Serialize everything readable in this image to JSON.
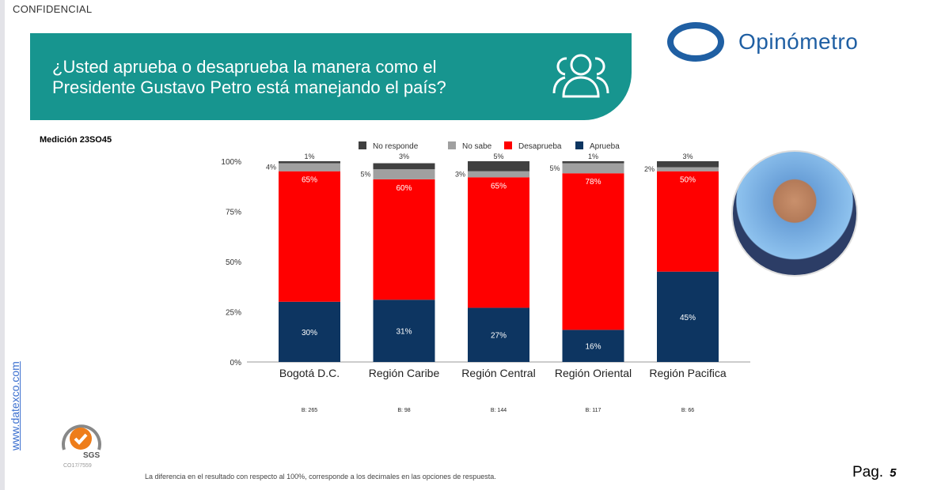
{
  "header": {
    "confidential": "CONFIDENCIAL",
    "question": "¿Usted aprueba o desaprueba la manera como el Presidente Gustavo Petro está manejando el país?",
    "brand": "Opinómetro",
    "measurement": "Medición 23SO45"
  },
  "footer": {
    "website": "www.datexco.com",
    "certificate": "CO17/7559",
    "sgs": "SGS",
    "note": "La diferencia en el resultado con respecto al 100%, corresponde a los decimales en las opciones de respuesta.",
    "page_label": "Pag.",
    "page_number": "5"
  },
  "chart_data": {
    "type": "bar",
    "stacked": true,
    "orientation": "vertical",
    "categories": [
      "Bogotá D.C.",
      "Región Caribe",
      "Región Central",
      "Región Oriental",
      "Región Pacifica"
    ],
    "base_labels": [
      "B: 265",
      "B: 98",
      "B: 144",
      "B: 117",
      "B: 66"
    ],
    "series": [
      {
        "name": "Aprueba",
        "color": "#0d3561",
        "values": [
          30,
          31,
          27,
          16,
          45
        ]
      },
      {
        "name": "Desaprueba",
        "color": "#ff0000",
        "values": [
          65,
          60,
          65,
          78,
          50
        ]
      },
      {
        "name": "No sabe",
        "color": "#a0a0a0",
        "values": [
          4,
          5,
          3,
          5,
          2
        ]
      },
      {
        "name": "No responde",
        "color": "#404040",
        "values": [
          1,
          3,
          5,
          1,
          3
        ]
      }
    ],
    "legend_order": [
      "No responde",
      "No sabe",
      "Desaprueba",
      "Aprueba"
    ],
    "legend_position": "top",
    "yticks": [
      "0%",
      "25%",
      "50%",
      "75%",
      "100%"
    ],
    "ylim": [
      0,
      100
    ],
    "grid": false
  }
}
